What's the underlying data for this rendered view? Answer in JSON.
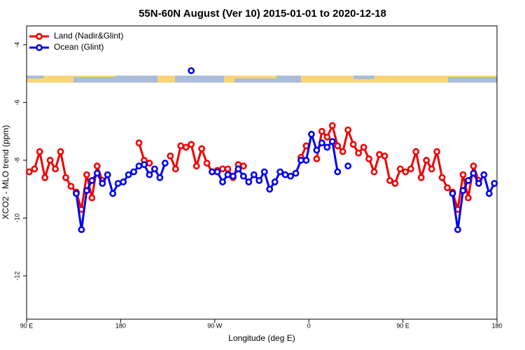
{
  "chart_data": {
    "type": "line",
    "title": "55N-60N August (Ver 10)   2015-01-01 to 2020-12-18",
    "x_label": "Longitude (deg E)",
    "y_label": "XCO2 - MLO trend (ppm)",
    "xlim": [
      90,
      540
    ],
    "xticks": [
      {
        "value": 90,
        "label": "90 E"
      },
      {
        "value": 180,
        "label": "180"
      },
      {
        "value": 270,
        "label": "90 W"
      },
      {
        "value": 360,
        "label": "0"
      },
      {
        "value": 450,
        "label": "90 E"
      },
      {
        "value": 540,
        "label": "180"
      }
    ],
    "ylim": [
      -13.5,
      -3.35
    ],
    "yticks": [
      -4,
      -6,
      -8,
      -10,
      -12
    ],
    "legend": "top-left",
    "x": [
      92.5,
      97.5,
      102.5,
      107.5,
      112.5,
      117.5,
      122.5,
      127.5,
      132.5,
      137.5,
      142.5,
      147.5,
      152.5,
      157.5,
      162.5,
      167.5,
      172.5,
      177.5,
      182.5,
      187.5,
      192.5,
      197.5,
      202.5,
      207.5,
      212.5,
      217.5,
      222.5,
      227.5,
      232.5,
      237.5,
      242.5,
      247.5,
      252.5,
      257.5,
      262.5,
      267.5,
      272.5,
      277.5,
      282.5,
      287.5,
      292.5,
      297.5,
      302.5,
      307.5,
      312.5,
      317.5,
      322.5,
      327.5,
      332.5,
      337.5,
      342.5,
      347.5,
      352.5,
      357.5,
      362.5,
      367.5,
      372.5,
      377.5,
      382.5,
      387.5,
      392.5,
      397.5,
      402.5,
      407.5,
      412.5,
      417.5,
      422.5,
      427.5,
      432.5,
      437.5,
      442.5,
      447.5,
      452.5,
      457.5,
      462.5,
      467.5,
      472.5,
      477.5,
      482.5,
      487.5,
      492.5,
      497.5,
      502.5,
      507.5,
      512.5,
      517.5,
      522.5,
      527.5,
      532.5,
      537.5
    ],
    "series": [
      {
        "name": "Land (Nadir&Glint)",
        "color": "#ee0000",
        "values": [
          -8.4,
          -8.3,
          -7.7,
          -8.6,
          -8.0,
          -8.3,
          -7.7,
          -8.6,
          -8.9,
          -9.1,
          -9.7,
          -8.5,
          -9.3,
          -8.2,
          -8.7,
          null,
          null,
          null,
          null,
          null,
          null,
          -7.4,
          -8.0,
          -8.1,
          null,
          null,
          null,
          -7.85,
          -8.3,
          -7.5,
          -7.55,
          -7.45,
          -8.2,
          -7.6,
          -8.1,
          -8.4,
          -8.35,
          -8.3,
          -8.3,
          -8.6,
          -8.15,
          -8.2,
          null,
          null,
          null,
          null,
          null,
          null,
          null,
          null,
          null,
          null,
          -7.9,
          -7.5,
          null,
          -7.95,
          -7.0,
          -7.2,
          -6.8,
          -7.5,
          -7.7,
          -6.95,
          -7.45,
          -7.75,
          -7.55,
          -7.95,
          -8.4,
          -7.8,
          -7.85,
          -8.7,
          -8.8,
          -8.3,
          -8.4,
          -8.3,
          -7.7,
          -8.6,
          -8.0,
          -8.3,
          -7.7,
          -8.6,
          -8.95,
          -9.1,
          -9.7,
          -8.5,
          -9.3,
          -8.2,
          -8.7,
          null,
          null,
          null
        ]
      },
      {
        "name": "Ocean (Glint)",
        "color": "#0000ee",
        "values": [
          null,
          null,
          null,
          null,
          null,
          null,
          null,
          null,
          null,
          -9.15,
          -10.4,
          -9.05,
          -8.7,
          -8.45,
          -8.8,
          -8.5,
          -9.15,
          -8.8,
          -8.75,
          -8.5,
          -8.4,
          -8.2,
          -8.15,
          -8.5,
          -8.3,
          -8.6,
          -8.1,
          null,
          null,
          null,
          null,
          -4.9,
          null,
          null,
          null,
          -8.4,
          -8.4,
          -8.75,
          -8.5,
          -8.55,
          -8.3,
          -8.55,
          -8.75,
          -8.5,
          -8.7,
          -8.4,
          -9.0,
          -8.75,
          -8.4,
          -8.5,
          -8.55,
          -8.45,
          -8.0,
          -8.0,
          -7.1,
          -7.65,
          -7.4,
          -7.55,
          -7.35,
          -8.4,
          null,
          -8.2,
          null,
          null,
          null,
          null,
          null,
          null,
          null,
          null,
          null,
          null,
          null,
          null,
          null,
          null,
          null,
          null,
          null,
          null,
          null,
          -9.15,
          -10.4,
          -9.05,
          -8.7,
          -8.45,
          -8.8,
          -8.5,
          -9.15,
          -8.8
        ]
      }
    ]
  }
}
